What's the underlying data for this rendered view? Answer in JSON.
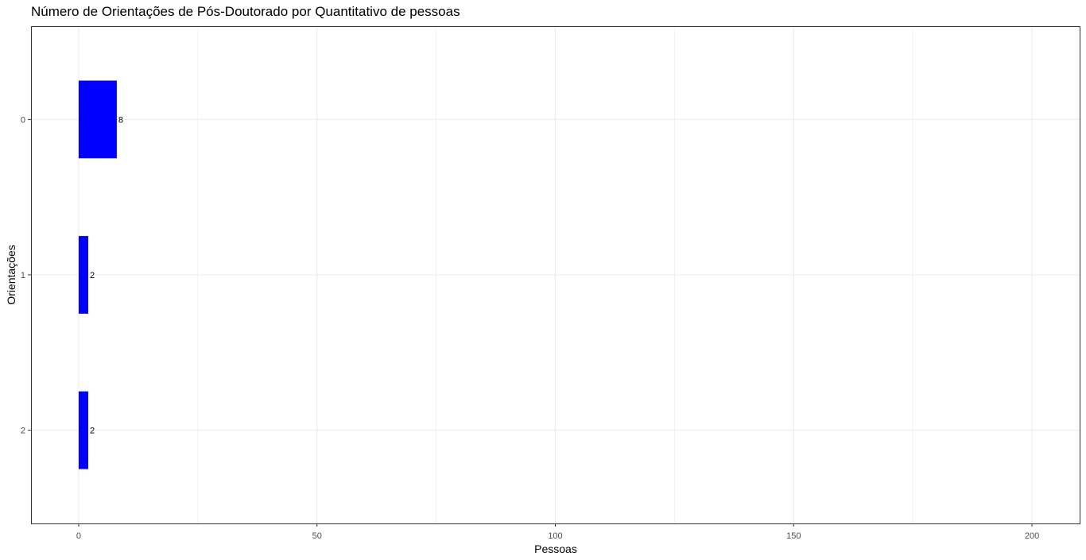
{
  "chart_data": {
    "type": "bar",
    "orientation": "horizontal",
    "title": "Número de Orientações de Pós-Doutorado por Quantitativo de pessoas",
    "xlabel": "Pessoas",
    "ylabel": "Orientações",
    "categories": [
      "0",
      "1",
      "2"
    ],
    "values": [
      8,
      2,
      2
    ],
    "data_labels": [
      "8",
      "2",
      "2"
    ],
    "xlim": [
      -10,
      210
    ],
    "x_ticks": [
      0,
      50,
      100,
      150,
      200
    ],
    "x_tick_labels": [
      "0",
      "50",
      "100",
      "150",
      "200"
    ],
    "grid": true,
    "bar_color": "#0000FF",
    "grid_color": "#EBEBEB",
    "panel_border_color": "#333333"
  }
}
